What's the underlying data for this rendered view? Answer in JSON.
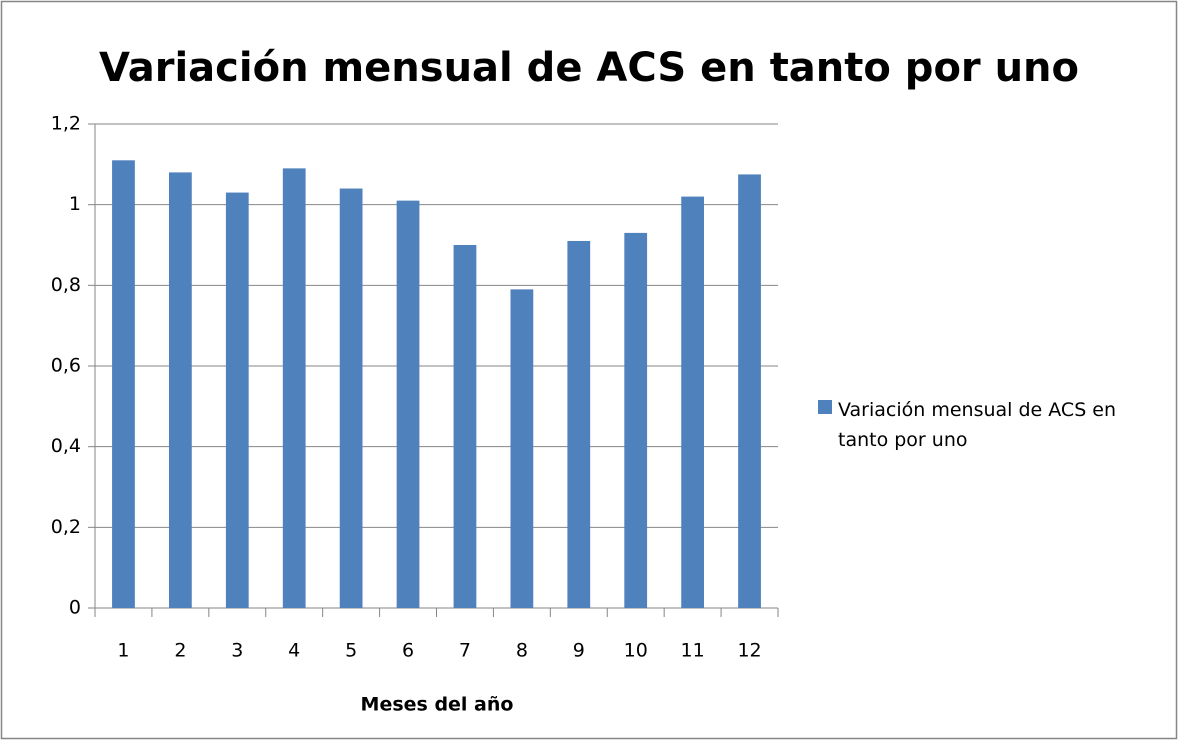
{
  "chart_data": {
    "type": "bar",
    "title": "Variación mensual de ACS en tanto por uno",
    "x_label": "Meses del año",
    "categories": [
      "1",
      "2",
      "3",
      "4",
      "5",
      "6",
      "7",
      "8",
      "9",
      "10",
      "11",
      "12"
    ],
    "series": [
      {
        "name": "Variación mensual de ACS en tanto por uno",
        "color": "#4f81bd",
        "values": [
          1.11,
          1.08,
          1.03,
          1.09,
          1.04,
          1.01,
          0.9,
          0.79,
          0.91,
          0.93,
          1.02,
          1.075
        ]
      }
    ],
    "ylim": [
      0,
      1.2
    ],
    "yticks": [
      0,
      {
        "value": 0.2,
        "label": "0,2"
      },
      {
        "value": 0.4,
        "label": "0,4"
      },
      {
        "value": 0.6,
        "label": "0,6"
      },
      {
        "value": 0.8,
        "label": "0,8"
      },
      1,
      {
        "value": 1.2,
        "label": "1,2"
      }
    ],
    "grid": true,
    "legend": "right"
  }
}
